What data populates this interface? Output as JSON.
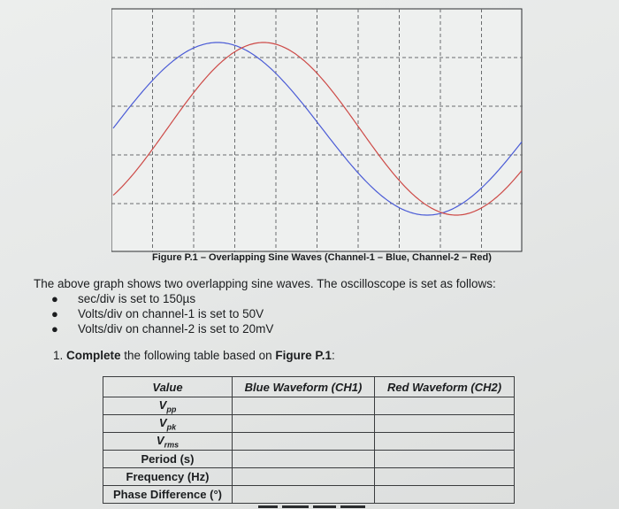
{
  "figure": {
    "caption": "Figure P.1 – Overlapping Sine Waves (Channel-1 – Blue, Channel-2 – Red)",
    "colors": {
      "grid": "#6b6d6f",
      "blue": "#4a5bd6",
      "red": "#cd4a47",
      "background": "#eef0ef"
    }
  },
  "intro": "The above graph shows two overlapping sine waves. The oscilloscope is set as follows:",
  "settings": [
    "sec/div is set to 150µs",
    "Volts/div on channel-1 is set to 50V",
    "Volts/div on channel-2 is set to 20mV"
  ],
  "question": {
    "number": "1.",
    "bold": "Complete",
    "middle": " the following table based on ",
    "figure_ref": "Figure P.1",
    "end": ":"
  },
  "table": {
    "headers": [
      "Value",
      "Blue Waveform (CH1)",
      "Red Waveform (CH2)"
    ],
    "rows": [
      {
        "base": "V",
        "sub": "pp"
      },
      {
        "base": "V",
        "sub": "pk"
      },
      {
        "base": "V",
        "sub": "rms"
      },
      {
        "label": "Period (s)"
      },
      {
        "label": "Frequency (Hz)"
      },
      {
        "label": "Phase Difference (°)"
      }
    ]
  }
}
